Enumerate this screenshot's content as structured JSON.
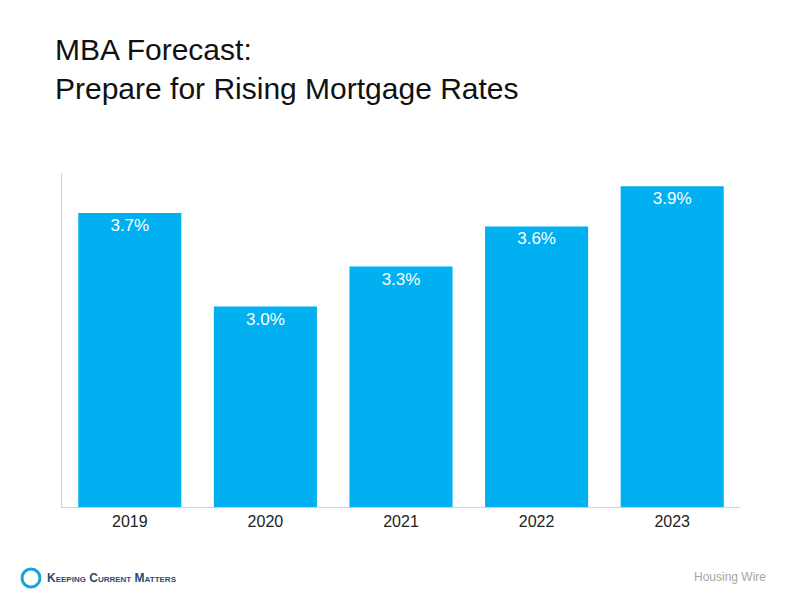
{
  "chart_data": {
    "type": "bar",
    "title": "MBA Forecast:\nPrepare for Rising Mortgage Rates",
    "categories": [
      "2019",
      "2020",
      "2021",
      "2022",
      "2023"
    ],
    "values": [
      3.7,
      3.0,
      3.3,
      3.6,
      3.9
    ],
    "value_labels": [
      "3.7%",
      "3.0%",
      "3.3%",
      "3.6%",
      "3.9%"
    ],
    "data_labels": true,
    "color": "#00b0f0",
    "ylim": [
      1.5,
      4.0
    ],
    "yticks": [],
    "grid": false,
    "tick_labels": "x",
    "annotations": [
      "Keeping Current Matters",
      "Housing Wire"
    ]
  }
}
